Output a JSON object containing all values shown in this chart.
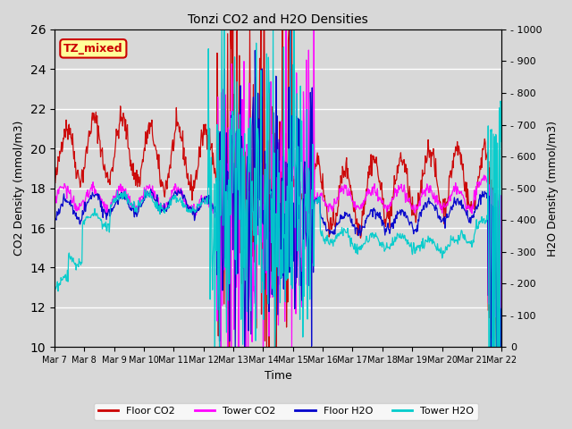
{
  "title": "Tonzi CO2 and H2O Densities",
  "xlabel": "Time",
  "ylabel_left": "CO2 Density (mmol/m3)",
  "ylabel_right": "H2O Density (mmol/m3)",
  "ylim_left": [
    10,
    26
  ],
  "ylim_right": [
    0,
    1000
  ],
  "yticks_left": [
    10,
    12,
    14,
    16,
    18,
    20,
    22,
    24,
    26
  ],
  "yticks_right": [
    0,
    100,
    200,
    300,
    400,
    500,
    600,
    700,
    800,
    900,
    1000
  ],
  "xtick_labels": [
    "Mar 7",
    "Mar 8",
    "Mar 9",
    "Mar 10",
    "Mar 11",
    "Mar 12",
    "Mar 13",
    "Mar 14",
    "Mar 15",
    "Mar 16",
    "Mar 17",
    "Mar 18",
    "Mar 19",
    "Mar 20",
    "Mar 21",
    "Mar 22"
  ],
  "annotation_text": "TZ_mixed",
  "annotation_color": "#cc0000",
  "annotation_bg": "#ffff99",
  "legend_entries": [
    "Floor CO2",
    "Tower CO2",
    "Floor H2O",
    "Tower H2O"
  ],
  "legend_colors": [
    "#cc0000",
    "#ff00ff",
    "#0000cc",
    "#00cccc"
  ],
  "floor_co2_color": "#cc0000",
  "tower_co2_color": "#ff00ff",
  "floor_h2o_color": "#0000cc",
  "tower_h2o_color": "#00cccc",
  "background_color": "#d8d8d8",
  "plot_bg_color": "#d8d8d8",
  "grid_color": "#ffffff"
}
